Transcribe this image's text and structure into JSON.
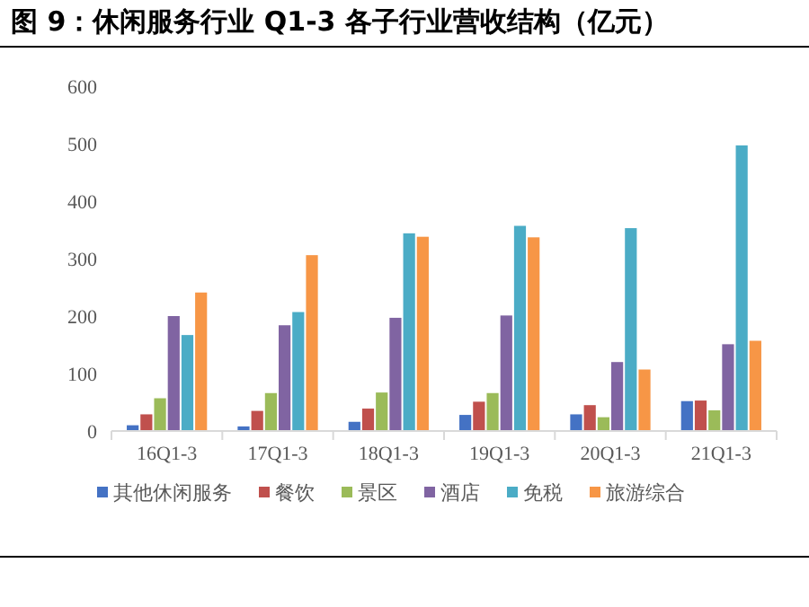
{
  "chart_data": {
    "type": "bar",
    "title": "图 9：休闲服务行业 Q1-3 各子行业营收结构（亿元）",
    "categories": [
      "16Q1-3",
      "17Q1-3",
      "18Q1-3",
      "19Q1-3",
      "20Q1-3",
      "21Q1-3"
    ],
    "series": [
      {
        "name": "其他休闲服务",
        "color": "#4472c4",
        "values": [
          10,
          8,
          16,
          28,
          29,
          52
        ]
      },
      {
        "name": "餐饮",
        "color": "#c0504d",
        "values": [
          29,
          35,
          39,
          51,
          45,
          53
        ]
      },
      {
        "name": "景区",
        "color": "#9bbb59",
        "values": [
          57,
          66,
          67,
          66,
          24,
          36
        ]
      },
      {
        "name": "酒店",
        "color": "#8064a2",
        "values": [
          200,
          184,
          197,
          201,
          120,
          151
        ]
      },
      {
        "name": "免税",
        "color": "#4bacc6",
        "values": [
          167,
          207,
          344,
          357,
          353,
          497
        ]
      },
      {
        "name": "旅游综合",
        "color": "#f79646",
        "values": [
          241,
          306,
          338,
          337,
          107,
          157
        ]
      }
    ],
    "ylim": [
      0,
      600
    ],
    "yticks": [
      0,
      100,
      200,
      300,
      400,
      500,
      600
    ],
    "grid": false,
    "legend": "bottom"
  }
}
